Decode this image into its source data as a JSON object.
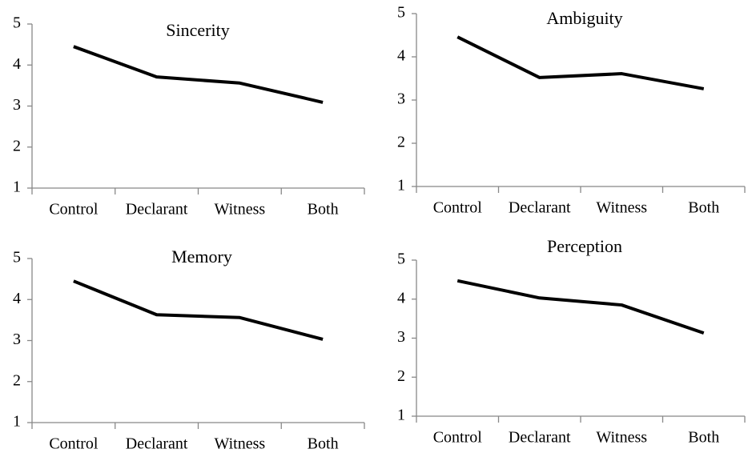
{
  "chart_data": [
    {
      "type": "line",
      "title": "Sincerity",
      "categories": [
        "Control",
        "Declarant",
        "Witness",
        "Both"
      ],
      "values": [
        4.45,
        3.71,
        3.56,
        3.09
      ],
      "color": "#000000",
      "ylim": [
        1,
        5
      ],
      "yticks": [
        1,
        2,
        3,
        4,
        5
      ]
    },
    {
      "type": "line",
      "title": "Ambiguity",
      "categories": [
        "Control",
        "Declarant",
        "Witness",
        "Both"
      ],
      "values": [
        4.46,
        3.52,
        3.61,
        3.26
      ],
      "color": "#000000",
      "ylim": [
        1,
        5
      ],
      "yticks": [
        1,
        2,
        3,
        4,
        5
      ]
    },
    {
      "type": "line",
      "title": "Memory",
      "categories": [
        "Control",
        "Declarant",
        "Witness",
        "Both"
      ],
      "values": [
        4.45,
        3.63,
        3.56,
        3.03
      ],
      "color": "#000000",
      "ylim": [
        1,
        5
      ],
      "yticks": [
        1,
        2,
        3,
        4,
        5
      ]
    },
    {
      "type": "line",
      "title": "Perception",
      "categories": [
        "Control",
        "Declarant",
        "Witness",
        "Both"
      ],
      "values": [
        4.47,
        4.03,
        3.85,
        3.13
      ],
      "color": "#000000",
      "ylim": [
        1,
        5
      ],
      "yticks": [
        1,
        2,
        3,
        4,
        5
      ]
    }
  ]
}
